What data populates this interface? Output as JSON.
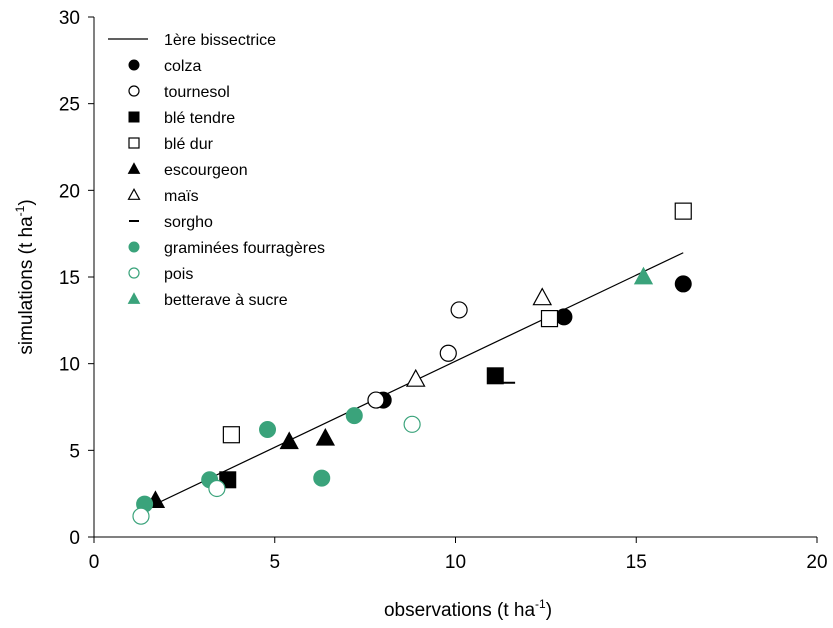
{
  "chart_data": {
    "type": "scatter",
    "title": "",
    "xlabel": "observations (t ha",
    "xlabel_sup": "-1",
    "xlabel_end": ")",
    "ylabel": "simulations (t ha",
    "ylabel_sup": "-1",
    "ylabel_end": ")",
    "xlim": [
      0,
      20
    ],
    "ylim": [
      0,
      30
    ],
    "xticks": [
      0,
      5,
      10,
      15,
      20
    ],
    "yticks": [
      0,
      5,
      10,
      15,
      20,
      25,
      30
    ],
    "grid": false,
    "legend_position": "top-left",
    "colors": {
      "black": "#000000",
      "green": "#3aa37b"
    },
    "line": {
      "name": "1ère bissectrice",
      "x": [
        1.4,
        16.3
      ],
      "y": [
        1.6,
        16.4
      ]
    },
    "series": [
      {
        "name": "colza",
        "marker": "circle",
        "fill": "filled",
        "color": "#000000",
        "points": [
          [
            8.0,
            7.9
          ],
          [
            13.0,
            12.7
          ],
          [
            16.3,
            14.6
          ]
        ]
      },
      {
        "name": "tournesol",
        "marker": "circle",
        "fill": "open",
        "color": "#000000",
        "points": [
          [
            7.8,
            7.9
          ],
          [
            9.8,
            10.6
          ],
          [
            10.1,
            13.1
          ]
        ]
      },
      {
        "name": "blé tendre",
        "marker": "square",
        "fill": "filled",
        "color": "#000000",
        "points": [
          [
            3.7,
            3.3
          ],
          [
            11.1,
            9.3
          ]
        ]
      },
      {
        "name": "blé dur",
        "marker": "square",
        "fill": "open",
        "color": "#000000",
        "points": [
          [
            3.8,
            5.9
          ],
          [
            12.6,
            12.6
          ],
          [
            16.3,
            18.8
          ]
        ]
      },
      {
        "name": "escourgeon",
        "marker": "triangle",
        "fill": "filled",
        "color": "#000000",
        "points": [
          [
            1.7,
            2.1
          ],
          [
            5.4,
            5.5
          ],
          [
            6.4,
            5.7
          ]
        ]
      },
      {
        "name": "maïs",
        "marker": "triangle",
        "fill": "open",
        "color": "#000000",
        "points": [
          [
            8.9,
            9.1
          ],
          [
            12.4,
            13.8
          ]
        ]
      },
      {
        "name": "sorgho",
        "marker": "dash",
        "fill": "filled",
        "color": "#000000",
        "points": [
          [
            11.4,
            8.9
          ]
        ]
      },
      {
        "name": "graminées fourragères",
        "marker": "circle",
        "fill": "filled",
        "color": "#3aa37b",
        "points": [
          [
            1.4,
            1.9
          ],
          [
            3.2,
            3.3
          ],
          [
            4.8,
            6.2
          ],
          [
            6.3,
            3.4
          ],
          [
            7.2,
            7.0
          ]
        ]
      },
      {
        "name": "pois",
        "marker": "circle",
        "fill": "open",
        "color": "#3aa37b",
        "points": [
          [
            1.3,
            1.2
          ],
          [
            3.4,
            2.8
          ],
          [
            8.8,
            6.5
          ]
        ]
      },
      {
        "name": "betterave à sucre",
        "marker": "triangle",
        "fill": "filled",
        "color": "#3aa37b",
        "points": [
          [
            15.2,
            15.0
          ]
        ]
      }
    ]
  }
}
